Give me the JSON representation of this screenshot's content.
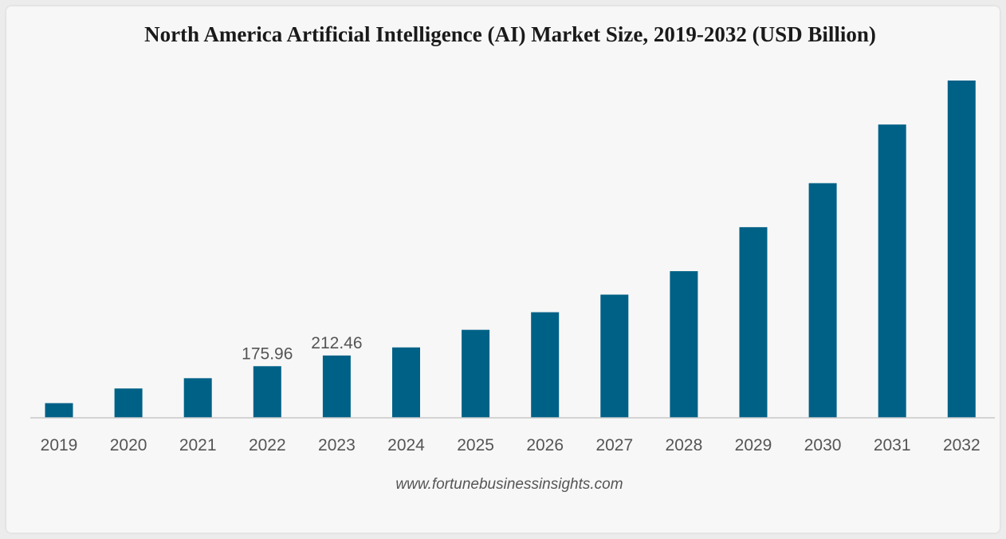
{
  "chart_data": {
    "type": "bar",
    "title": "North America Artificial Intelligence (AI) Market Size, 2019-2032 (USD Billion)",
    "xlabel": "",
    "ylabel": "",
    "categories": [
      "2019",
      "2020",
      "2021",
      "2022",
      "2023",
      "2024",
      "2025",
      "2026",
      "2027",
      "2028",
      "2029",
      "2030",
      "2031",
      "2032"
    ],
    "values": [
      50,
      100,
      135,
      175.96,
      212.46,
      240,
      300,
      360,
      420,
      500,
      650,
      800,
      1000,
      1150
    ],
    "data_labels": [
      "",
      "",
      "",
      "175.96",
      "212.46",
      "",
      "",
      "",
      "",
      "",
      "",
      "",
      "",
      ""
    ],
    "ylim": [
      0,
      1150
    ],
    "grid": false,
    "legend": "none",
    "bar_color": "#006187",
    "axis_color": "#c8c8c8",
    "source": "www.fortunebusinessinsights.com"
  }
}
